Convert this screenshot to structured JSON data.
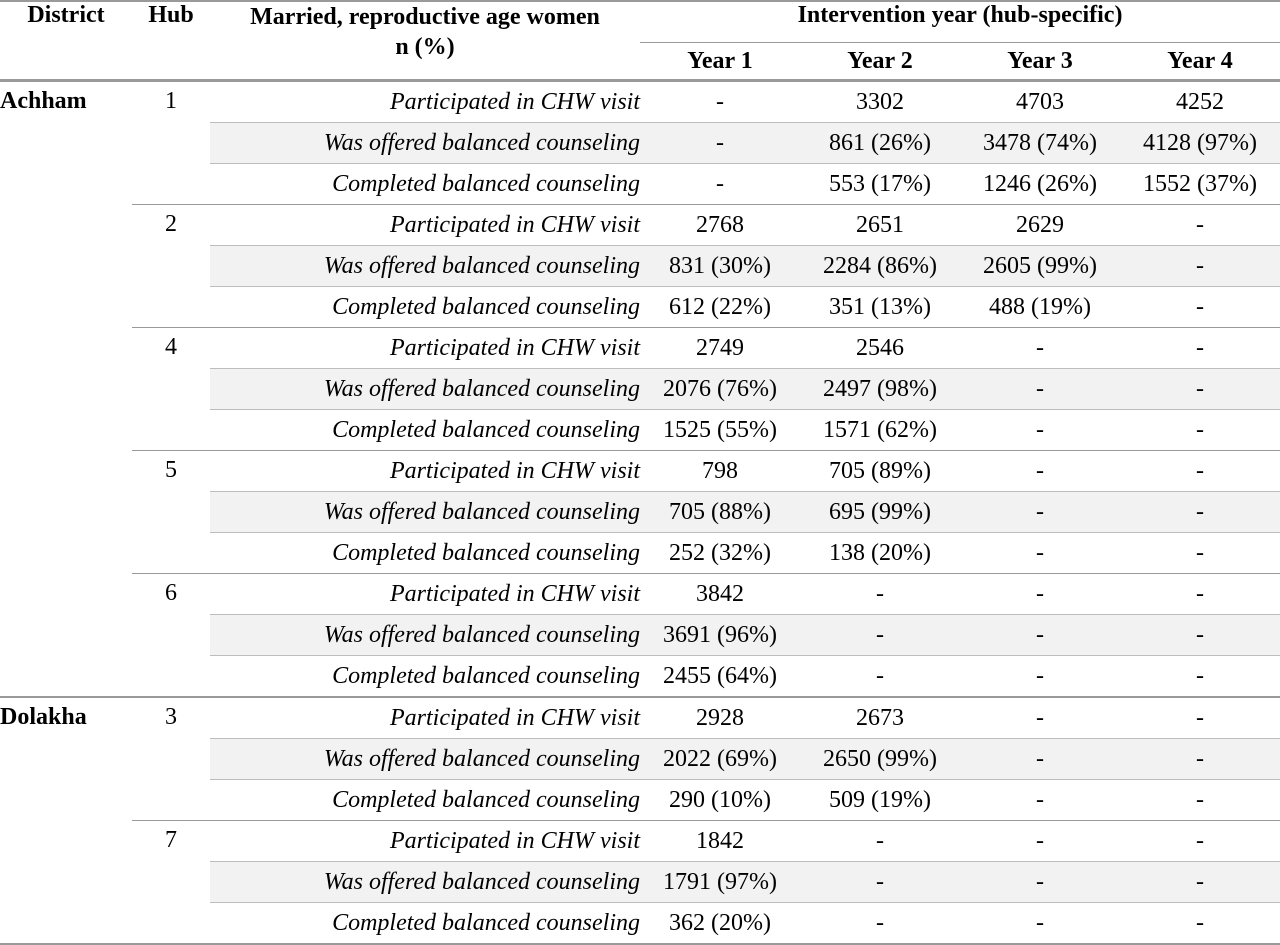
{
  "header": {
    "district": "District",
    "hub": "Hub",
    "women_line1": "Married, reproductive age women",
    "women_line2": "n (%)",
    "intervention": "Intervention year (hub-specific)",
    "years": [
      "Year 1",
      "Year 2",
      "Year 3",
      "Year 4"
    ]
  },
  "rows": [
    {
      "district": "Achham",
      "hub": "1",
      "measure": "Participated in CHW visit",
      "values": [
        "-",
        "3302",
        "4703",
        "4252"
      ]
    },
    {
      "district": "",
      "hub": "",
      "measure": "Was offered balanced counseling",
      "values": [
        "-",
        "861 (26%)",
        "3478 (74%)",
        "4128 (97%)"
      ]
    },
    {
      "district": "",
      "hub": "",
      "measure": "Completed balanced counseling",
      "values": [
        "-",
        "553 (17%)",
        "1246 (26%)",
        "1552 (37%)"
      ]
    },
    {
      "district": "",
      "hub": "2",
      "measure": "Participated in CHW visit",
      "values": [
        "2768",
        "2651",
        "2629",
        "-"
      ]
    },
    {
      "district": "",
      "hub": "",
      "measure": "Was offered balanced counseling",
      "values": [
        "831 (30%)",
        "2284 (86%)",
        "2605 (99%)",
        "-"
      ]
    },
    {
      "district": "",
      "hub": "",
      "measure": "Completed balanced counseling",
      "values": [
        "612 (22%)",
        "351 (13%)",
        "488 (19%)",
        "-"
      ]
    },
    {
      "district": "",
      "hub": "4",
      "measure": "Participated in CHW visit",
      "values": [
        "2749",
        "2546",
        "-",
        "-"
      ]
    },
    {
      "district": "",
      "hub": "",
      "measure": "Was offered balanced counseling",
      "values": [
        "2076 (76%)",
        "2497 (98%)",
        "-",
        "-"
      ]
    },
    {
      "district": "",
      "hub": "",
      "measure": "Completed balanced counseling",
      "values": [
        "1525 (55%)",
        "1571 (62%)",
        "-",
        "-"
      ]
    },
    {
      "district": "",
      "hub": "5",
      "measure": "Participated in CHW visit",
      "values": [
        "798",
        "705 (89%)",
        "-",
        "-"
      ]
    },
    {
      "district": "",
      "hub": "",
      "measure": "Was offered balanced counseling",
      "values": [
        "705 (88%)",
        "695 (99%)",
        "-",
        "-"
      ]
    },
    {
      "district": "",
      "hub": "",
      "measure": "Completed balanced counseling",
      "values": [
        "252 (32%)",
        "138 (20%)",
        "-",
        "-"
      ]
    },
    {
      "district": "",
      "hub": "6",
      "measure": "Participated in CHW visit",
      "values": [
        "3842",
        "-",
        "-",
        "-"
      ]
    },
    {
      "district": "",
      "hub": "",
      "measure": "Was offered balanced counseling",
      "values": [
        "3691 (96%)",
        "-",
        "-",
        "-"
      ]
    },
    {
      "district": "",
      "hub": "",
      "measure": "Completed balanced counseling",
      "values": [
        "2455 (64%)",
        "-",
        "-",
        "-"
      ]
    },
    {
      "district": "Dolakha",
      "hub": "3",
      "measure": "Participated in CHW visit",
      "values": [
        "2928",
        "2673",
        "-",
        "-"
      ]
    },
    {
      "district": "",
      "hub": "",
      "measure": "Was offered balanced counseling",
      "values": [
        "2022 (69%)",
        "2650 (99%)",
        "-",
        "-"
      ]
    },
    {
      "district": "",
      "hub": "",
      "measure": "Completed balanced counseling",
      "values": [
        "290 (10%)",
        "509 (19%)",
        "-",
        "-"
      ]
    },
    {
      "district": "",
      "hub": "7",
      "measure": "Participated in CHW visit",
      "values": [
        "1842",
        "-",
        "-",
        "-"
      ]
    },
    {
      "district": "",
      "hub": "",
      "measure": "Was offered balanced counseling",
      "values": [
        "1791 (97%)",
        "-",
        "-",
        "-"
      ]
    },
    {
      "district": "",
      "hub": "",
      "measure": "Completed balanced counseling",
      "values": [
        "362 (20%)",
        "-",
        "-",
        "-"
      ]
    }
  ],
  "colors": {
    "row_shade": "#f2f2f2",
    "rule": "#9a9a9a",
    "hairline": "#bdbdbd"
  }
}
